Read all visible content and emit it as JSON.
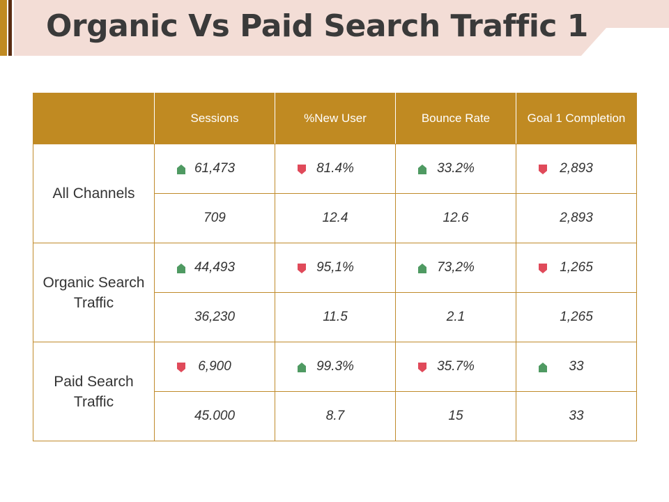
{
  "title": "Organic Vs Paid Search Traffic 1",
  "colors": {
    "header_bg": "#c08a22",
    "border": "#c08a2a",
    "banner_bg": "#f3ddd6",
    "accent_dark": "#5a2d12",
    "up": "#4f9a62",
    "down": "#e04a5a",
    "green_text": "#2e9a52",
    "red_text": "#b3191c"
  },
  "table": {
    "headers": [
      "",
      "Sessions",
      "%New User",
      "Bounce Rate",
      "Goal 1 Completion"
    ],
    "groups": [
      {
        "label": "All Channels",
        "metrics": [
          {
            "value": "61,473",
            "trend": "up"
          },
          {
            "value": "81.4%",
            "trend": "down"
          },
          {
            "value": "33.2%",
            "trend": "up"
          },
          {
            "value": "2,893",
            "trend": "down"
          }
        ],
        "changes": [
          {
            "value": "709",
            "color": "green"
          },
          {
            "value": "12.4",
            "color": "red"
          },
          {
            "value": "12.6",
            "color": "green"
          },
          {
            "value": "2,893",
            "color": "red"
          }
        ]
      },
      {
        "label": "Organic Search Traffic",
        "metrics": [
          {
            "value": "44,493",
            "trend": "up"
          },
          {
            "value": "95,1%",
            "trend": "down"
          },
          {
            "value": "73,2%",
            "trend": "up"
          },
          {
            "value": "1,265",
            "trend": "down"
          }
        ],
        "changes": [
          {
            "value": "36,230",
            "color": "dark"
          },
          {
            "value": "11.5",
            "color": "dark"
          },
          {
            "value": "2.1",
            "color": "dark"
          },
          {
            "value": "1,265",
            "color": "dark"
          }
        ]
      },
      {
        "label": "Paid Search Traffic",
        "metrics": [
          {
            "value": "6,900",
            "trend": "down"
          },
          {
            "value": "99.3%",
            "trend": "up"
          },
          {
            "value": "35.7%",
            "trend": "down"
          },
          {
            "value": "33",
            "trend": "up"
          }
        ],
        "changes": [
          {
            "value": "45.000",
            "color": "red"
          },
          {
            "value": "8.7",
            "color": "green"
          },
          {
            "value": "15",
            "color": "red"
          },
          {
            "value": "33",
            "color": "green"
          }
        ]
      }
    ]
  }
}
